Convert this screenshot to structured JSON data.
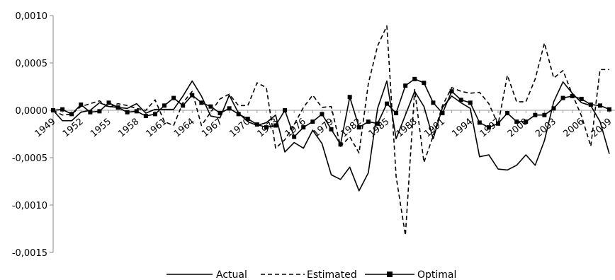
{
  "chart_data": {
    "type": "line",
    "x": [
      1949,
      1950,
      1951,
      1952,
      1953,
      1954,
      1955,
      1956,
      1957,
      1958,
      1959,
      1960,
      1961,
      1962,
      1963,
      1964,
      1965,
      1966,
      1967,
      1968,
      1969,
      1970,
      1971,
      1972,
      1973,
      1974,
      1975,
      1976,
      1977,
      1978,
      1979,
      1980,
      1981,
      1982,
      1983,
      1984,
      1985,
      1986,
      1987,
      1988,
      1989,
      1990,
      1991,
      1992,
      1993,
      1994,
      1995,
      1996,
      1997,
      1998,
      1999,
      2000,
      2001,
      2002,
      2003,
      2004,
      2005,
      2006,
      2007,
      2008,
      2009
    ],
    "x_tick_labels": [
      "1949",
      "1952",
      "1955",
      "1958",
      "1961",
      "1964",
      "1967",
      "1970",
      "1973",
      "1976",
      "1979",
      "1982",
      "1985",
      "1988",
      "1991",
      "1994",
      "1997",
      "2000",
      "2003",
      "2006",
      "2009"
    ],
    "x_tick_values": [
      1949,
      1952,
      1955,
      1958,
      1961,
      1964,
      1967,
      1970,
      1973,
      1976,
      1979,
      1982,
      1985,
      1988,
      1991,
      1994,
      1997,
      2000,
      2003,
      2006,
      2009
    ],
    "y_tick_labels": [
      "0,0010",
      "0,0005",
      "0,0000",
      "-0,0005",
      "-0,0010",
      "-0,0015"
    ],
    "y_tick_values": [
      0.001,
      0.0005,
      0,
      -0.0005,
      -0.001,
      -0.0015
    ],
    "ylim": [
      -0.0015,
      0.001
    ],
    "grid": false,
    "legend_position": "bottom",
    "series": [
      {
        "name": "Actual",
        "style": "solid",
        "values": [
          0,
          -0.00011,
          -0.00011,
          -2e-05,
          0,
          8e-05,
          4e-05,
          3e-05,
          2e-05,
          7e-05,
          -3e-05,
          1e-05,
          1e-05,
          1e-05,
          0.00015,
          0.00031,
          0.00015,
          -6e-05,
          -8e-05,
          0.00016,
          -3e-05,
          -0.00012,
          -0.00016,
          -0.00013,
          -5e-05,
          -0.00044,
          -0.00034,
          -0.0004,
          -0.00021,
          -0.00035,
          -0.00068,
          -0.00073,
          -0.0006,
          -0.00085,
          -0.00066,
          2e-05,
          0.00031,
          -0.0003,
          -5e-05,
          0.0002,
          4e-05,
          -0.0003,
          3e-05,
          0.00015,
          8e-05,
          2e-05,
          -0.00049,
          -0.00047,
          -0.00062,
          -0.00063,
          -0.00058,
          -0.00047,
          -0.00058,
          -0.00032,
          9e-05,
          0.0003,
          0.00018,
          8e-05,
          5e-05,
          -0.00012,
          -0.00046
        ]
      },
      {
        "name": "Estimated",
        "style": "dashed",
        "values": [
          0,
          -5e-05,
          -4e-05,
          4e-05,
          7e-05,
          0.0001,
          3e-05,
          7e-05,
          5e-05,
          2e-05,
          0,
          0.00011,
          -0.00012,
          -0.00016,
          8e-05,
          0.0002,
          -0.00016,
          -2e-05,
          0.00012,
          0.00017,
          5e-05,
          5e-05,
          0.00029,
          0.00024,
          -0.0004,
          -0.00031,
          -0.00015,
          3e-05,
          0.00016,
          3e-05,
          4e-05,
          -0.00038,
          -0.00028,
          -0.00045,
          0.00028,
          0.00068,
          0.00089,
          -0.0007,
          -0.00132,
          0.00022,
          -0.00055,
          -0.00027,
          5e-05,
          0.00024,
          0.0002,
          0.00018,
          0.00019,
          7e-05,
          -0.00015,
          0.00037,
          9e-05,
          9e-05,
          0.00033,
          0.00071,
          0.00034,
          0.00042,
          0.00017,
          -6e-05,
          -0.00038,
          0.00043,
          0.00043
        ]
      },
      {
        "name": "Optimal",
        "style": "solid-square-markers",
        "values": [
          0,
          1e-05,
          -4e-05,
          6e-05,
          -2e-05,
          -1e-05,
          8e-05,
          3e-05,
          -2e-05,
          -1e-05,
          -6e-05,
          -4e-05,
          5e-05,
          0.00013,
          5e-05,
          0.00016,
          8e-05,
          4e-05,
          -3e-05,
          2e-05,
          -4e-05,
          -9e-05,
          -0.00015,
          -0.00018,
          -0.00016,
          0,
          -0.00028,
          -0.00018,
          -0.00012,
          -4e-05,
          -0.0002,
          -0.00036,
          0.00014,
          -0.00018,
          -0.00012,
          -0.00014,
          7e-05,
          -3e-05,
          0.00026,
          0.00033,
          0.00029,
          8e-05,
          -3e-05,
          0.0002,
          0.00011,
          8e-05,
          -0.00013,
          -0.00018,
          -0.00014,
          -3e-05,
          -0.00012,
          -0.00012,
          -5e-05,
          -5e-05,
          2e-05,
          0.00013,
          0.00015,
          0.00012,
          6e-05,
          5e-05,
          1e-05
        ]
      }
    ]
  }
}
